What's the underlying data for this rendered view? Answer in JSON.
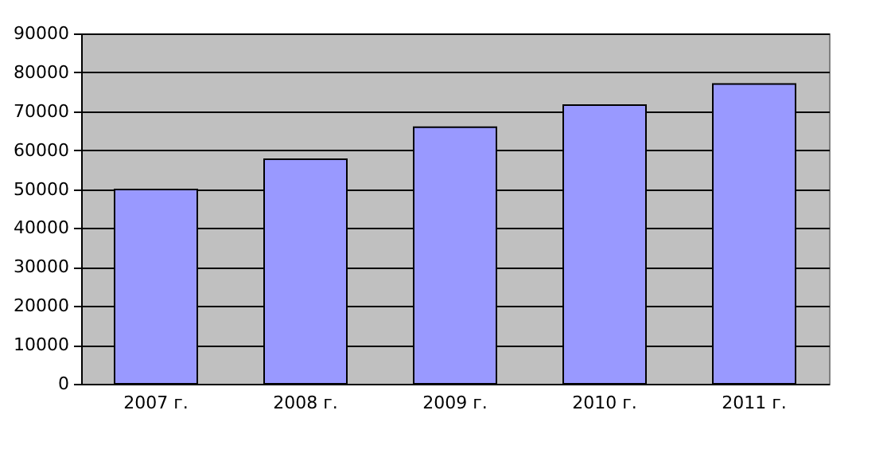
{
  "chart_data": {
    "type": "bar",
    "categories": [
      "2007 г.",
      "2008 г.",
      "2009 г.",
      "2010 г.",
      "2011 г."
    ],
    "values": [
      49900,
      57700,
      65900,
      71600,
      77000
    ],
    "color": "#9999ff",
    "ylim": [
      0,
      90000
    ],
    "yticks": [
      0,
      10000,
      20000,
      30000,
      40000,
      50000,
      60000,
      70000,
      80000,
      90000
    ],
    "grid": "y"
  }
}
